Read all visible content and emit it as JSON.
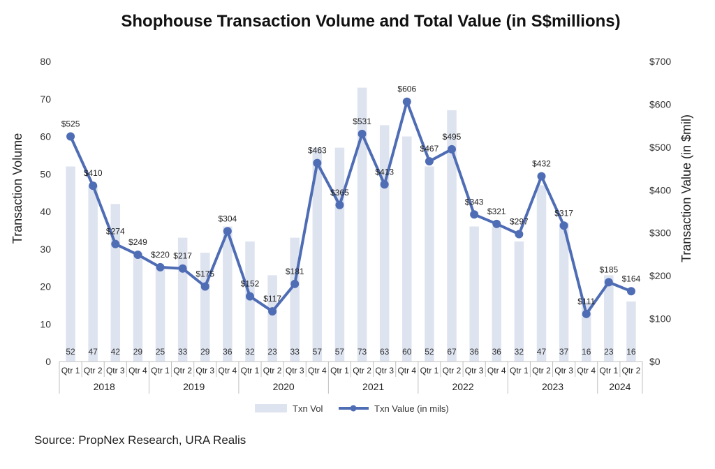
{
  "chart_data": {
    "type": "bar",
    "title": "Shophouse Transaction Volume and Total Value (in S$millions)",
    "ylabel": "Transaction Volume",
    "y2label": "Transaction Value (in $mil)",
    "ylim": [
      0,
      80
    ],
    "y2lim": [
      0,
      700
    ],
    "yticks": [
      "0",
      "10",
      "20",
      "30",
      "40",
      "50",
      "60",
      "70",
      "80"
    ],
    "y2ticks": [
      "$0",
      "$100",
      "$200",
      "$300",
      "$400",
      "$500",
      "$600",
      "$700"
    ],
    "categories": [
      "Qtr 1",
      "Qtr 2",
      "Qtr 3",
      "Qtr 4",
      "Qtr 1",
      "Qtr 2",
      "Qtr 3",
      "Qtr 4",
      "Qtr 1",
      "Qtr 2",
      "Qtr 3",
      "Qtr 4",
      "Qtr 1",
      "Qtr 2",
      "Qtr 3",
      "Qtr 4",
      "Qtr 1",
      "Qtr 2",
      "Qtr 3",
      "Qtr 4",
      "Qtr 1",
      "Qtr 2",
      "Qtr 3",
      "Qtr 4",
      "Qtr 1",
      "Qtr 2"
    ],
    "years": [
      {
        "label": "2018",
        "count": 4
      },
      {
        "label": "2019",
        "count": 4
      },
      {
        "label": "2020",
        "count": 4
      },
      {
        "label": "2021",
        "count": 4
      },
      {
        "label": "2022",
        "count": 4
      },
      {
        "label": "2023",
        "count": 4
      },
      {
        "label": "2024",
        "count": 2
      }
    ],
    "series": [
      {
        "name": "Txn Vol",
        "kind": "bar",
        "axis": "left",
        "color": "#dde3ef",
        "values": [
          52,
          47,
          42,
          29,
          25,
          33,
          29,
          36,
          32,
          23,
          33,
          57,
          57,
          73,
          63,
          60,
          52,
          67,
          36,
          36,
          32,
          47,
          37,
          16,
          23,
          16
        ],
        "labels": [
          "52",
          "47",
          "42",
          "29",
          "25",
          "33",
          "29",
          "36",
          "32",
          "23",
          "33",
          "57",
          "57",
          "73",
          "63",
          "60",
          "52",
          "67",
          "36",
          "36",
          "32",
          "47",
          "37",
          "16",
          "23",
          "16"
        ]
      },
      {
        "name": "Txn Value (in mils)",
        "kind": "line",
        "axis": "right",
        "color": "#4f6db5",
        "values": [
          525,
          410,
          274,
          249,
          220,
          217,
          175,
          304,
          152,
          117,
          181,
          463,
          365,
          531,
          413,
          606,
          467,
          495,
          343,
          321,
          297,
          432,
          317,
          111,
          185,
          164
        ],
        "labels": [
          "$525",
          "$410",
          "$274",
          "$249",
          "$220",
          "$217",
          "$175",
          "$304",
          "$152",
          "$117",
          "$181",
          "$463",
          "$365",
          "$531",
          "$413",
          "$606",
          "$467",
          "$495",
          "$343",
          "$321",
          "$297",
          "$432",
          "$317",
          "$111",
          "$185",
          "$164"
        ]
      }
    ],
    "legend_position": "bottom",
    "grid": false
  },
  "source": "Source: PropNex Research, URA Realis"
}
